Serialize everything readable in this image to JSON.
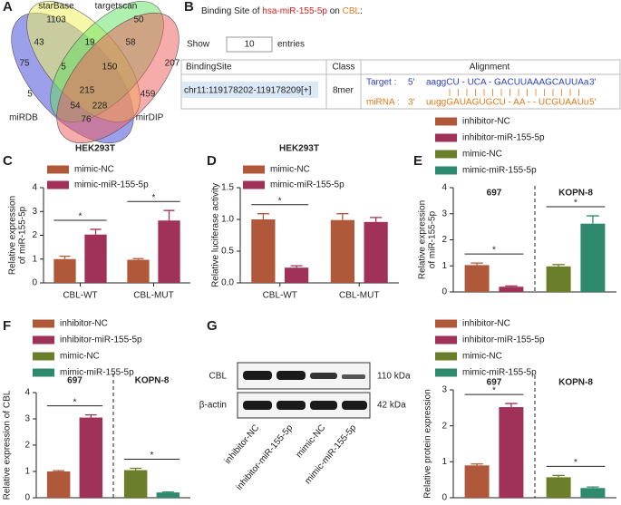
{
  "panels": [
    "A",
    "B",
    "C",
    "D",
    "E",
    "F",
    "G"
  ],
  "venn": {
    "sets": [
      "starBase",
      "targetscan",
      "miRDB",
      "mirDIP"
    ],
    "regions": [
      1103,
      50,
      43,
      19,
      58,
      75,
      207,
      5,
      150,
      215,
      5,
      459,
      54,
      228,
      76
    ]
  },
  "binding": {
    "title_parts": [
      "Binding Site of ",
      "hsa-miR-155-5p",
      " on ",
      "CBL",
      ":"
    ],
    "show": "Show",
    "entries_value": "10",
    "entries": "entries",
    "headers": [
      "BindingSite",
      "Class",
      "Alignment"
    ],
    "row": {
      "site": "chr11:119178202-119178209[+]",
      "class": "8mer",
      "target_label": "Target :",
      "target_5": "5'",
      "target_seq": "aaggCU - UCA - GACUUAAAGCAUUAa",
      "target_3": "3'",
      "mirna_label": "miRNA :",
      "mirna_3": "3'",
      "mirna_seq": "uuggGAUAGUGCU - AA - - UCGUAAUu",
      "mirna_5": "5'"
    }
  },
  "blot": {
    "rows": [
      "CBL",
      "β-actin"
    ],
    "sizes": [
      "110 kDa",
      "42 kDa"
    ],
    "lanes": [
      "inhibitor-NC",
      "inhibitor-miR-155-5p",
      "mimic-NC",
      "mimic-miR-155-5p"
    ]
  },
  "chart_data": [
    {
      "type": "bar",
      "title": "HEK293T",
      "y_label": [
        "Relative expression",
        "of miR-155-5p"
      ],
      "categories": [
        "CBL-WT",
        "CBL-MUT"
      ],
      "series": [
        {
          "name": "mimic-NC",
          "color": "#b0593a",
          "values": [
            1.0,
            0.97
          ],
          "errors": [
            0.12,
            0.05
          ]
        },
        {
          "name": "mimic-miR-155-5p",
          "color": "#a0325a",
          "values": [
            2.03,
            2.62
          ],
          "errors": [
            0.22,
            0.42
          ]
        }
      ],
      "ylim": [
        0,
        4
      ],
      "yticks": [
        0,
        1,
        2,
        3,
        4
      ],
      "significance": [
        "*",
        "*"
      ]
    },
    {
      "type": "bar",
      "title": "HEK293T",
      "y_label": [
        "Relative luciferase activity"
      ],
      "categories": [
        "CBL-WT",
        "CBL-MUT"
      ],
      "series": [
        {
          "name": "mimic-NC",
          "color": "#b0593a",
          "values": [
            1.0,
            0.99
          ],
          "errors": [
            0.09,
            0.1
          ]
        },
        {
          "name": "mimic-miR-155-5p",
          "color": "#a0325a",
          "values": [
            0.24,
            0.96
          ],
          "errors": [
            0.03,
            0.07
          ]
        }
      ],
      "ylim": [
        0,
        1.5
      ],
      "yticks": [
        {
          "value": 0,
          "label": "0.0"
        },
        0.5,
        {
          "value": 1,
          "label": "1.0"
        },
        1.5
      ],
      "significance": [
        "*",
        null
      ]
    },
    {
      "type": "bar",
      "y_label": [
        "Relative expression",
        "of miR-155-5p"
      ],
      "categories": [
        "697",
        "KOPN-8"
      ],
      "series": [
        {
          "name": "inhibitor-NC",
          "color": "#b0593a",
          "values": [
            1.03,
            null
          ],
          "errors": [
            0.08,
            null
          ]
        },
        {
          "name": "inhibitor-miR-155-5p",
          "color": "#a0325a",
          "values": [
            0.2,
            null
          ],
          "errors": [
            0.03,
            null
          ]
        },
        {
          "name": "mimic-NC",
          "color": "#6b7f2a",
          "values": [
            null,
            0.98
          ],
          "errors": [
            null,
            0.07
          ]
        },
        {
          "name": "mimic-miR-155-5p",
          "color": "#2e8a6e",
          "values": [
            null,
            2.62
          ],
          "errors": [
            null,
            0.3
          ]
        }
      ],
      "ylim": [
        0,
        4
      ],
      "yticks": [
        0,
        1,
        2,
        3,
        4
      ],
      "significance": [
        "*",
        "*"
      ]
    },
    {
      "type": "bar",
      "y_label": [
        "Relative expression of CBL"
      ],
      "categories": [
        "697",
        "KOPN-8"
      ],
      "series": [
        {
          "name": "inhibitor-NC",
          "color": "#b0593a",
          "values": [
            1.0,
            null
          ],
          "errors": [
            0.03,
            null
          ]
        },
        {
          "name": "inhibitor-miR-155-5p",
          "color": "#a0325a",
          "values": [
            3.05,
            null
          ],
          "errors": [
            0.1,
            null
          ]
        },
        {
          "name": "mimic-NC",
          "color": "#6b7f2a",
          "values": [
            null,
            1.05
          ],
          "errors": [
            null,
            0.07
          ]
        },
        {
          "name": "mimic-miR-155-5p",
          "color": "#2e8a6e",
          "values": [
            null,
            0.2
          ],
          "errors": [
            null,
            0.02
          ]
        }
      ],
      "ylim": [
        0,
        4
      ],
      "yticks": [
        0,
        1,
        2,
        3,
        4
      ],
      "significance": [
        "*",
        "*"
      ]
    },
    {
      "type": "bar",
      "y_label": [
        "Relative protein expression"
      ],
      "categories": [
        "697",
        "KOPN-8"
      ],
      "series": [
        {
          "name": "inhibitor-NC",
          "color": "#b0593a",
          "values": [
            0.9,
            null
          ],
          "errors": [
            0.04,
            null
          ]
        },
        {
          "name": "inhibitor-miR-155-5p",
          "color": "#a0325a",
          "values": [
            2.52,
            null
          ],
          "errors": [
            0.1,
            null
          ]
        },
        {
          "name": "mimic-NC",
          "color": "#6b7f2a",
          "values": [
            null,
            0.57
          ],
          "errors": [
            null,
            0.05
          ]
        },
        {
          "name": "mimic-miR-155-5p",
          "color": "#2e8a6e",
          "values": [
            null,
            0.27
          ],
          "errors": [
            null,
            0.03
          ]
        }
      ],
      "ylim": [
        0,
        3
      ],
      "yticks": [
        0,
        1,
        2,
        3
      ],
      "significance": [
        "*",
        "*"
      ]
    }
  ]
}
